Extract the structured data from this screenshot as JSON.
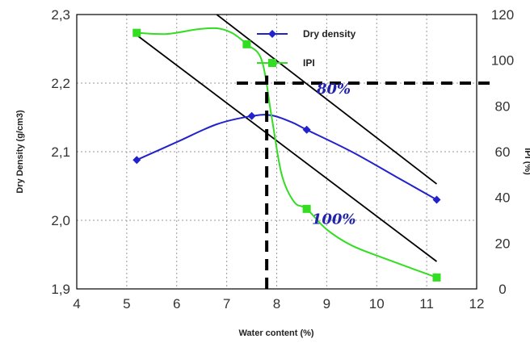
{
  "chart_data": {
    "type": "line",
    "title": "",
    "xlabel": "Water content (%)",
    "ylabel_left": "Dry Density (g/cm3)",
    "ylabel_right": "IPI (%)",
    "xlim": [
      4,
      12
    ],
    "ylim_left": [
      1.9,
      2.3
    ],
    "ylim_right": [
      0,
      120
    ],
    "xticks": [
      "4",
      "5",
      "6",
      "7",
      "8",
      "9",
      "10",
      "11",
      "12"
    ],
    "yticks_left": [
      "1,9",
      "2,0",
      "2,1",
      "2,2",
      "2,3"
    ],
    "yticks_right": [
      "0",
      "20",
      "40",
      "60",
      "80",
      "100",
      "120"
    ],
    "grid": true,
    "legend_position": "top-right",
    "series": [
      {
        "name": "Dry density",
        "axis": "left",
        "color": "#2222cc",
        "marker": "diamond",
        "x": [
          5.2,
          7.5,
          8.6,
          11.2
        ],
        "y": [
          2.088,
          2.152,
          2.132,
          2.03
        ],
        "curve": [
          [
            5.2,
            2.088
          ],
          [
            6.0,
            2.114
          ],
          [
            6.8,
            2.14
          ],
          [
            7.5,
            2.152
          ],
          [
            7.9,
            2.153
          ],
          [
            8.3,
            2.143
          ],
          [
            8.6,
            2.132
          ],
          [
            9.5,
            2.1
          ],
          [
            10.4,
            2.063
          ],
          [
            11.2,
            2.03
          ]
        ]
      },
      {
        "name": "IPI",
        "axis": "right",
        "color": "#33dd22",
        "marker": "square",
        "x": [
          5.2,
          7.4,
          8.6,
          11.2
        ],
        "y": [
          112,
          107,
          35,
          5
        ],
        "curve": [
          [
            5.2,
            112
          ],
          [
            5.8,
            111.5
          ],
          [
            6.4,
            113.5
          ],
          [
            6.8,
            114
          ],
          [
            7.1,
            112
          ],
          [
            7.4,
            107
          ],
          [
            7.7,
            100
          ],
          [
            7.9,
            75
          ],
          [
            8.1,
            50
          ],
          [
            8.35,
            38
          ],
          [
            8.6,
            35
          ],
          [
            9.0,
            26
          ],
          [
            9.5,
            19
          ],
          [
            10.2,
            13
          ],
          [
            11.2,
            5
          ]
        ]
      }
    ],
    "saturation_lines": [
      {
        "label": "80%",
        "color": "#000000",
        "x": [
          6.8,
          11.2
        ],
        "y": [
          2.3,
          2.053
        ]
      },
      {
        "label": "100%",
        "color": "#000000",
        "x": [
          5.2,
          11.2
        ],
        "y": [
          2.27,
          1.94
        ]
      }
    ],
    "annotations": [
      {
        "text": "80%",
        "x": 8.8,
        "y": 2.185,
        "color": "#2222aa"
      },
      {
        "text": "100%",
        "x": 8.7,
        "y": 1.995,
        "color": "#2222aa"
      }
    ],
    "reference_lines": [
      {
        "type": "vertical",
        "x": 7.8,
        "from_left_y": 1.9,
        "to_left_y": 2.211,
        "style": "dashed"
      },
      {
        "type": "horizontal",
        "right_y": 90,
        "from_x": 7.2,
        "to_x": 12.3,
        "style": "dashed"
      }
    ]
  }
}
